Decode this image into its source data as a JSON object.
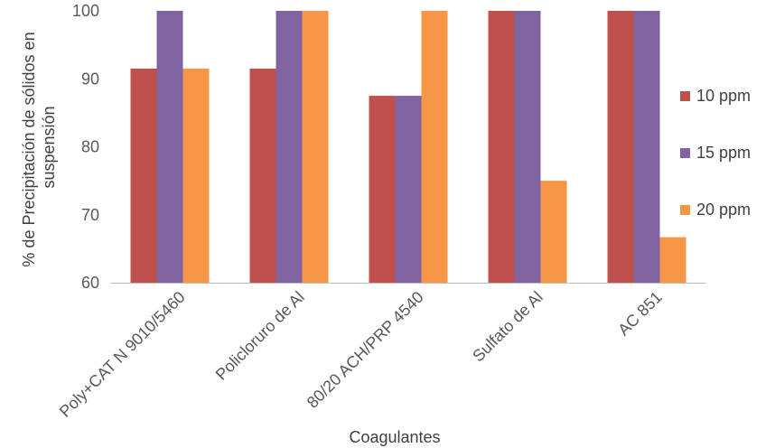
{
  "chart_data": {
    "type": "bar",
    "title": "",
    "xlabel": "Coagulantes",
    "ylabel_lines": [
      "% de Precipitación de sólidos en",
      "suspensión"
    ],
    "ylim": [
      60,
      100
    ],
    "yticks": [
      60,
      70,
      80,
      90,
      100
    ],
    "categories": [
      "Poly+CAT N 9010/5460",
      "Policloruro de Al",
      "80/20 ACH/PRP 4540",
      "Sulfato de Al",
      "AC 851"
    ],
    "series": [
      {
        "name": "10 ppm",
        "color": "#c0504d",
        "values": [
          91.5,
          91.5,
          87.5,
          100,
          100
        ]
      },
      {
        "name": "15 ppm",
        "color": "#8064a2",
        "values": [
          100,
          100,
          87.5,
          100,
          100
        ]
      },
      {
        "name": "20 ppm",
        "color": "#f79646",
        "values": [
          91.5,
          100,
          100,
          75,
          66.7
        ]
      }
    ],
    "legend_position": "right",
    "grid": false
  }
}
